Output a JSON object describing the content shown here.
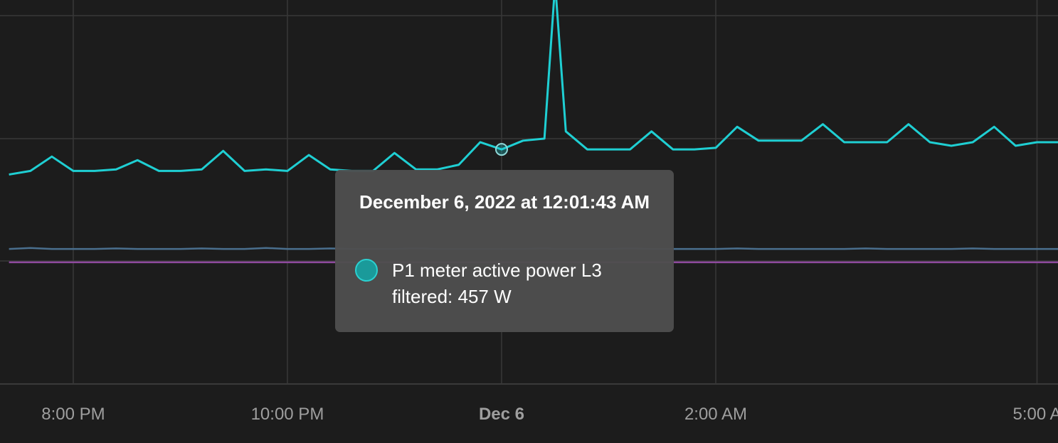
{
  "chart_data": {
    "type": "line",
    "x": [
      19.4,
      19.6,
      19.8,
      20.0,
      20.2,
      20.4,
      20.6,
      20.8,
      21.0,
      21.2,
      21.4,
      21.6,
      21.8,
      22.0,
      22.2,
      22.4,
      22.6,
      22.8,
      23.0,
      23.2,
      23.4,
      23.6,
      23.8,
      24.0,
      24.2,
      24.4,
      24.5,
      24.6,
      24.8,
      25.0,
      25.2,
      25.4,
      25.6,
      25.8,
      26.0,
      26.2,
      26.4,
      26.6,
      26.8,
      27.0,
      27.2,
      27.4,
      27.6,
      27.8,
      28.0,
      28.2,
      28.4,
      28.6,
      28.8,
      29.0,
      29.2
    ],
    "series": [
      {
        "name": "P1 meter active power L3 filtered",
        "color": "#1fcfd3",
        "values": [
          408,
          415,
          443,
          415,
          415,
          418,
          436,
          415,
          415,
          418,
          454,
          415,
          418,
          415,
          446,
          418,
          415,
          415,
          450,
          418,
          418,
          427,
          471,
          457,
          474,
          478,
          780,
          492,
          457,
          457,
          457,
          492,
          457,
          457,
          460,
          501,
          474,
          474,
          474,
          506,
          471,
          471,
          471,
          506,
          471,
          464,
          471,
          501,
          464,
          471,
          471
        ]
      },
      {
        "color": "#4a6f8e",
        "values": [
          263,
          265,
          263,
          263,
          263,
          264,
          263,
          263,
          263,
          264,
          263,
          263,
          265,
          263,
          263,
          264,
          263,
          263,
          263,
          264,
          263,
          263,
          263,
          263,
          263,
          264,
          263,
          263,
          263,
          263,
          264,
          263,
          263,
          263,
          263,
          264,
          263,
          263,
          263,
          263,
          263,
          264,
          263,
          263,
          263,
          263,
          264,
          263,
          263,
          263,
          263
        ]
      },
      {
        "color": "#8e4a9e",
        "values": [
          237,
          237,
          237,
          237,
          237,
          237,
          237,
          237,
          237,
          237,
          237,
          237,
          237,
          237,
          237,
          237,
          237,
          237,
          237,
          237,
          237,
          237,
          237,
          237,
          237,
          237,
          237,
          237,
          237,
          237,
          237,
          237,
          237,
          237,
          237,
          237,
          237,
          237,
          237,
          237,
          237,
          237,
          237,
          237,
          237,
          237,
          237,
          237,
          237,
          237,
          237
        ]
      }
    ],
    "xlim": [
      19.316,
      29.196
    ],
    "ylim": [
      0,
      748
    ],
    "xticks": [
      {
        "value": 20,
        "label": "8:00 PM"
      },
      {
        "value": 22,
        "label": "10:00 PM"
      },
      {
        "value": 24,
        "label": "Dec 6"
      },
      {
        "value": 26,
        "label": "2:00 AM"
      },
      {
        "value": 29,
        "label": "5:00 A"
      }
    ],
    "grid": true,
    "tooltip": {
      "x": 24.0,
      "value": 457,
      "title": "December 6, 2022 at 12:01:43 AM",
      "text": "P1 meter active power L3 filtered: 457 W"
    }
  }
}
